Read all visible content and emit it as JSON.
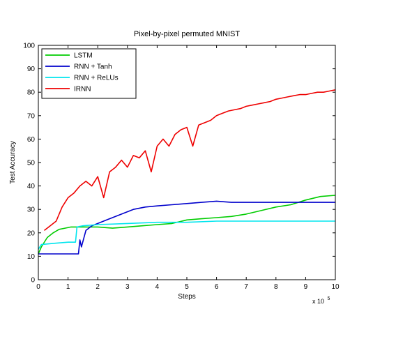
{
  "chart_data": {
    "type": "line",
    "title": "Pixel-by-pixel permuted MNIST",
    "xlabel": "Steps",
    "ylabel": "Test Accuracy",
    "x_multiplier_label": "x 10",
    "x_multiplier_exponent": "5",
    "xlim": [
      0,
      10
    ],
    "ylim": [
      0,
      100
    ],
    "xticks": [
      0,
      1,
      2,
      3,
      4,
      5,
      6,
      7,
      8,
      9,
      10
    ],
    "yticks": [
      0,
      10,
      20,
      30,
      40,
      50,
      60,
      70,
      80,
      90,
      100
    ],
    "grid": false,
    "legend_position": "top-left",
    "series": [
      {
        "name": "LSTM",
        "color": "#00cc00",
        "x": [
          0,
          0.1,
          0.3,
          0.5,
          0.7,
          0.9,
          1.1,
          1.3,
          1.5,
          2.0,
          2.5,
          3.0,
          3.5,
          4.0,
          4.5,
          5.0,
          5.5,
          6.0,
          6.5,
          7.0,
          7.5,
          8.0,
          8.5,
          9.0,
          9.5,
          10.0
        ],
        "y": [
          11,
          14,
          18,
          20,
          21.5,
          22,
          22.5,
          22.5,
          22.5,
          22.5,
          22,
          22.5,
          23,
          23.5,
          24,
          25.5,
          26,
          26.5,
          27,
          28,
          29.5,
          31,
          32,
          34,
          35.5,
          36
        ]
      },
      {
        "name": "RNN + Tanh",
        "color": "#0000cc",
        "x": [
          0,
          0.2,
          0.5,
          1.0,
          1.35,
          1.4,
          1.45,
          1.6,
          1.8,
          2.0,
          2.3,
          2.6,
          2.9,
          3.2,
          3.6,
          4.0,
          4.5,
          5.0,
          5.5,
          6.0,
          6.5,
          7.0,
          7.5,
          8.0,
          8.5,
          9.0,
          9.5,
          10.0
        ],
        "y": [
          11,
          11,
          11,
          11,
          11,
          17,
          14,
          21,
          23,
          24,
          25.5,
          27,
          28.5,
          30,
          31,
          31.5,
          32,
          32.5,
          33,
          33.5,
          33,
          33,
          33,
          33,
          33,
          33,
          33,
          33
        ]
      },
      {
        "name": "RNN + ReLUs",
        "color": "#00e5ee",
        "x": [
          0,
          0.1,
          0.5,
          1.0,
          1.25,
          1.3,
          1.5,
          2.0,
          3.0,
          4.0,
          5.0,
          6.0,
          7.0,
          8.0,
          9.0,
          10.0
        ],
        "y": [
          13,
          15,
          15.5,
          16,
          16,
          22.5,
          23,
          23.5,
          24,
          24.5,
          24.5,
          25,
          25,
          25,
          25,
          25
        ]
      },
      {
        "name": "IRNN",
        "color": "#ee0000",
        "x": [
          0.2,
          0.4,
          0.6,
          0.8,
          1.0,
          1.2,
          1.4,
          1.6,
          1.8,
          2.0,
          2.2,
          2.4,
          2.6,
          2.8,
          3.0,
          3.2,
          3.4,
          3.6,
          3.8,
          4.0,
          4.2,
          4.4,
          4.6,
          4.8,
          5.0,
          5.2,
          5.4,
          5.6,
          5.8,
          6.0,
          6.2,
          6.4,
          6.6,
          6.8,
          7.0,
          7.2,
          7.4,
          7.6,
          7.8,
          8.0,
          8.2,
          8.4,
          8.6,
          8.8,
          9.0,
          9.2,
          9.4,
          9.6,
          9.8,
          10.0
        ],
        "y": [
          21,
          23,
          25,
          31,
          35,
          37,
          40,
          42,
          40,
          44,
          35,
          46,
          48,
          51,
          48,
          53,
          52,
          55,
          46,
          57,
          60,
          57,
          62,
          64,
          65,
          57,
          66,
          67,
          68,
          70,
          71,
          72,
          72.5,
          73,
          74,
          74.5,
          75,
          75.5,
          76,
          77,
          77.5,
          78,
          78.5,
          79,
          79,
          79.5,
          80,
          80,
          80.5,
          81
        ]
      }
    ]
  }
}
